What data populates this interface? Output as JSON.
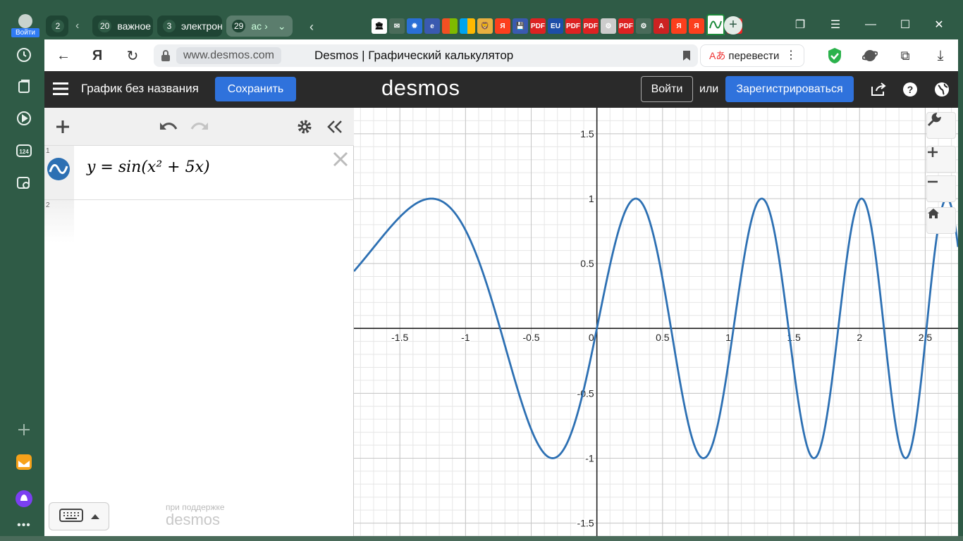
{
  "browser": {
    "login_label": "Войти",
    "tab_groups": [
      {
        "count": "2",
        "label": ""
      },
      {
        "count": "20",
        "label": "важное"
      },
      {
        "count": "3",
        "label": "электрон"
      },
      {
        "count": "29",
        "label": "ас"
      }
    ],
    "url_domain": "www.desmos.com",
    "page_title": "Desmos | Графический калькулятор",
    "translate_label": "перевести",
    "sidebar_badge": "124",
    "favicons": [
      "Я",
      "PDF",
      "EU",
      "PDF",
      "PDF",
      "PDF",
      "Я",
      "Я",
      "M"
    ]
  },
  "desmos": {
    "graph_title": "График без названия",
    "save_label": "Сохранить",
    "logo": "desmos",
    "login_label": "Войти",
    "or_label": "или",
    "register_label": "Зарегистрироваться",
    "expressions": [
      {
        "index": "1",
        "latex": "y = sin(x² + 5x)"
      },
      {
        "index": "2",
        "latex": ""
      }
    ],
    "powered_by": "при поддержке",
    "powered_logo": "desmos"
  },
  "chart_data": {
    "type": "line",
    "function": "y = sin(x^2 + 5x)",
    "xlim": [
      -1.85,
      2.75
    ],
    "ylim": [
      -1.6,
      1.7
    ],
    "x_ticks": [
      "-1.5",
      "-1",
      "-0.5",
      "0",
      "0.5",
      "1",
      "1.5",
      "2",
      "2.5"
    ],
    "y_ticks": [
      "1.5",
      "1",
      "0.5",
      "-0.5",
      "-1",
      "-1.5"
    ],
    "color": "#2d70b3",
    "grid": true
  }
}
